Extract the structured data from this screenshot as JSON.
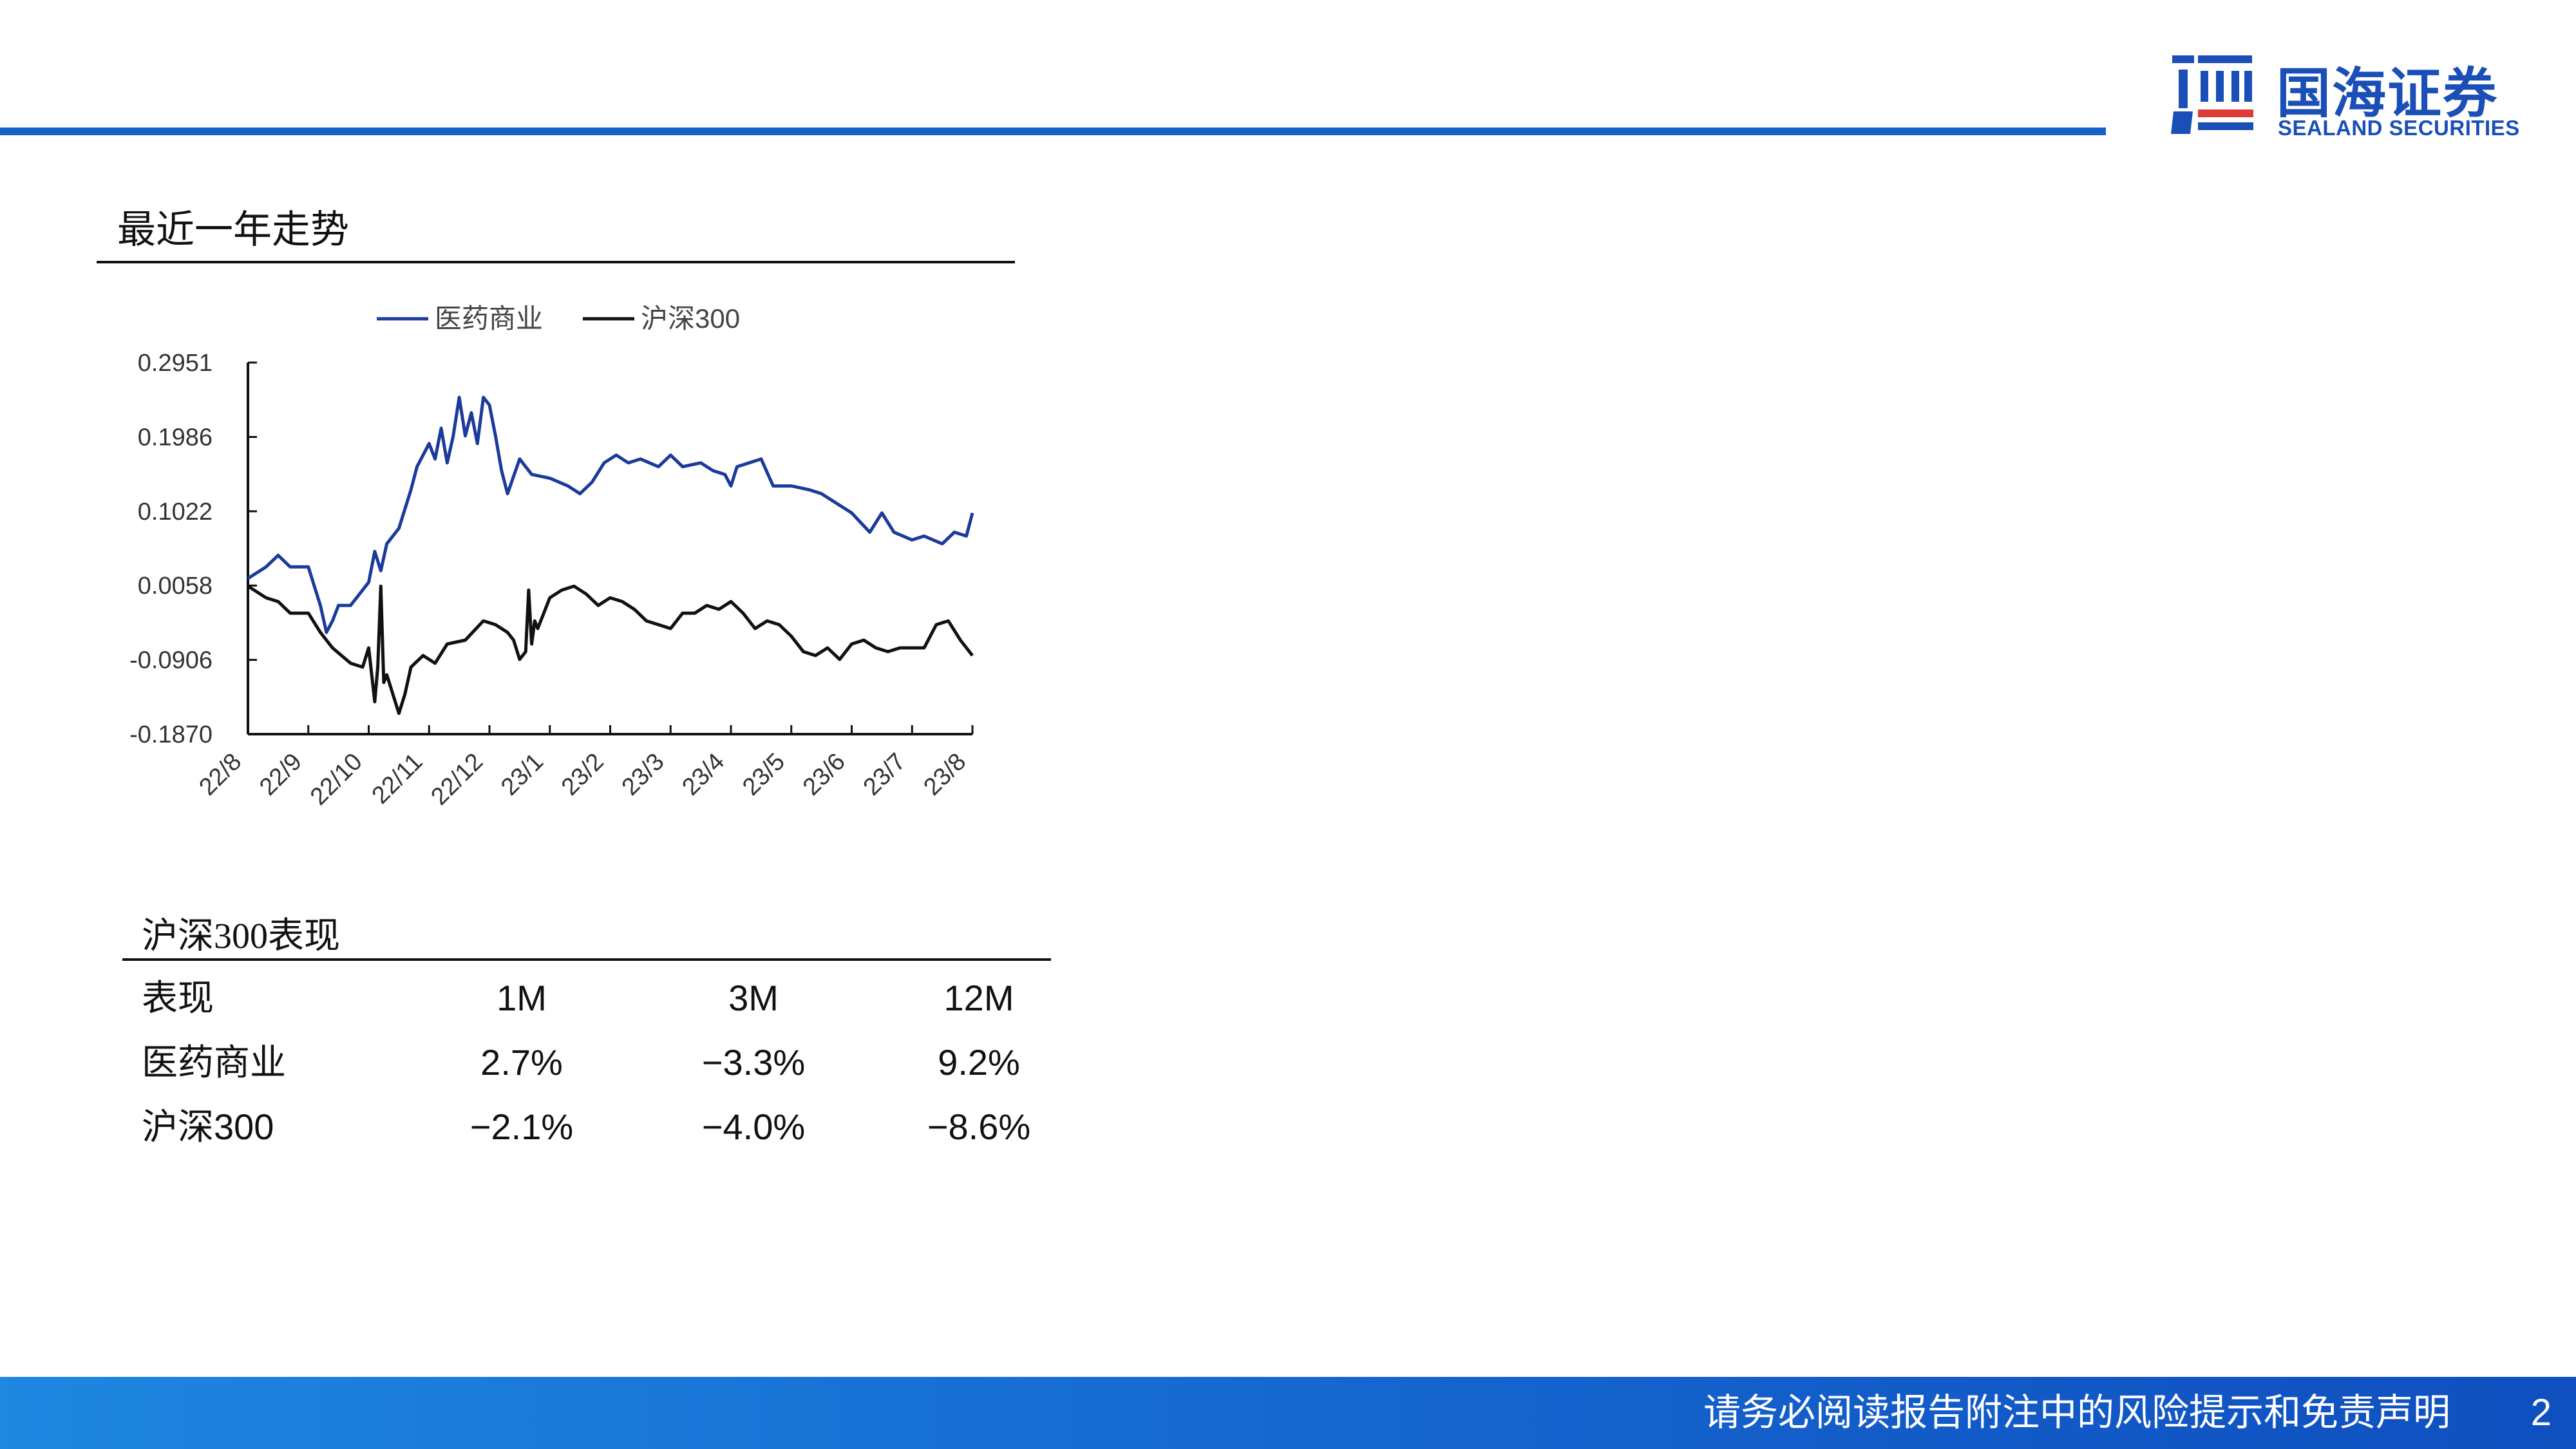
{
  "header": {
    "logo_cn": "国海证券",
    "logo_en": "SEALAND SECURITIES",
    "brand_color": "#1560c9"
  },
  "section_title": "最近一年走势",
  "chart_data": {
    "type": "line",
    "title": "",
    "xlabel": "",
    "ylabel": "",
    "legend_position": "top",
    "ylim": [
      -0.187,
      0.2951
    ],
    "y_ticks": [
      "0.2951",
      "0.1986",
      "0.1022",
      "0.0058",
      "-0.0906",
      "-0.1870"
    ],
    "x_ticks": [
      "22/8",
      "22/9",
      "22/10",
      "22/11",
      "22/12",
      "23/1",
      "23/2",
      "23/3",
      "23/4",
      "23/5",
      "23/6",
      "23/7",
      "23/8"
    ],
    "x_tick_pos": [
      0,
      1,
      2,
      3,
      4,
      5,
      6,
      7,
      8,
      9,
      10,
      11,
      12
    ],
    "series": [
      {
        "name": "医药商业",
        "color": "#1b3a9a",
        "x": [
          0,
          0.3,
          0.5,
          0.7,
          1.0,
          1.1,
          1.2,
          1.3,
          1.4,
          1.5,
          1.6,
          1.7,
          2.0,
          2.1,
          2.2,
          2.3,
          2.5,
          2.7,
          2.8,
          3.0,
          3.1,
          3.2,
          3.3,
          3.4,
          3.5,
          3.6,
          3.7,
          3.8,
          3.9,
          4.0,
          4.1,
          4.2,
          4.3,
          4.5,
          4.7,
          5.0,
          5.3,
          5.5,
          5.7,
          5.9,
          6.1,
          6.3,
          6.5,
          6.8,
          7.0,
          7.2,
          7.5,
          7.7,
          7.9,
          8.0,
          8.1,
          8.3,
          8.5,
          8.7,
          9.0,
          9.3,
          9.5,
          9.7,
          10.0,
          10.3,
          10.5,
          10.7,
          11.0,
          11.2,
          11.5,
          11.7,
          11.9,
          12.0
        ],
        "values": [
          0.015,
          0.03,
          0.045,
          0.03,
          0.03,
          0.005,
          -0.02,
          -0.055,
          -0.04,
          -0.02,
          -0.02,
          -0.02,
          0.01,
          0.05,
          0.025,
          0.06,
          0.08,
          0.13,
          0.16,
          0.19,
          0.17,
          0.21,
          0.165,
          0.2,
          0.25,
          0.2,
          0.23,
          0.19,
          0.25,
          0.24,
          0.2,
          0.155,
          0.125,
          0.17,
          0.15,
          0.145,
          0.135,
          0.125,
          0.14,
          0.165,
          0.175,
          0.165,
          0.17,
          0.16,
          0.175,
          0.16,
          0.165,
          0.155,
          0.15,
          0.135,
          0.16,
          0.165,
          0.17,
          0.135,
          0.135,
          0.13,
          0.125,
          0.115,
          0.1,
          0.075,
          0.1,
          0.075,
          0.065,
          0.07,
          0.06,
          0.075,
          0.07,
          0.1
        ]
      },
      {
        "name": "沪深300",
        "color": "#111111",
        "x": [
          0,
          0.3,
          0.5,
          0.7,
          1.0,
          1.2,
          1.4,
          1.7,
          1.9,
          2.0,
          2.1,
          2.15,
          2.2,
          2.25,
          2.3,
          2.5,
          2.6,
          2.7,
          2.9,
          3.1,
          3.3,
          3.6,
          3.9,
          4.1,
          4.3,
          4.4,
          4.5,
          4.6,
          4.65,
          4.7,
          4.75,
          4.8,
          4.9,
          5.0,
          5.2,
          5.4,
          5.6,
          5.8,
          6.0,
          6.2,
          6.4,
          6.6,
          6.8,
          7.0,
          7.2,
          7.4,
          7.6,
          7.8,
          8.0,
          8.2,
          8.4,
          8.6,
          8.8,
          9.0,
          9.2,
          9.4,
          9.6,
          9.8,
          10.0,
          10.2,
          10.4,
          10.6,
          10.8,
          11.0,
          11.2,
          11.4,
          11.6,
          11.8,
          12.0
        ],
        "values": [
          0.005,
          -0.01,
          -0.015,
          -0.03,
          -0.03,
          -0.055,
          -0.075,
          -0.095,
          -0.1,
          -0.075,
          -0.145,
          -0.1,
          0.005,
          -0.12,
          -0.11,
          -0.16,
          -0.135,
          -0.1,
          -0.085,
          -0.095,
          -0.07,
          -0.065,
          -0.04,
          -0.045,
          -0.055,
          -0.065,
          -0.09,
          -0.08,
          0.0,
          -0.07,
          -0.04,
          -0.05,
          -0.03,
          -0.01,
          0.0,
          0.005,
          -0.005,
          -0.02,
          -0.01,
          -0.015,
          -0.025,
          -0.04,
          -0.045,
          -0.05,
          -0.03,
          -0.03,
          -0.02,
          -0.025,
          -0.015,
          -0.03,
          -0.05,
          -0.04,
          -0.045,
          -0.06,
          -0.08,
          -0.085,
          -0.075,
          -0.09,
          -0.07,
          -0.065,
          -0.075,
          -0.08,
          -0.075,
          -0.075,
          -0.075,
          -0.045,
          -0.04,
          -0.065,
          -0.085
        ]
      }
    ]
  },
  "performance": {
    "title": "沪深300表现",
    "headers": [
      "表现",
      "1M",
      "3M",
      "12M"
    ],
    "rows": [
      [
        "医药商业",
        "2.7%",
        "−3.3%",
        "9.2%"
      ],
      [
        "沪深300",
        "−2.1%",
        "−4.0%",
        "−8.6%"
      ]
    ]
  },
  "footer": {
    "disclaimer": "请务必阅读报告附注中的风险提示和免责声明",
    "page_number": "2"
  }
}
